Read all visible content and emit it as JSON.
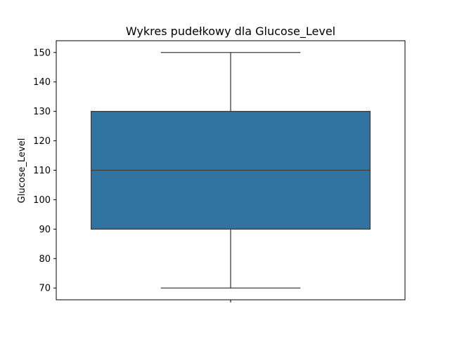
{
  "chart_data": {
    "type": "box",
    "title": "Wykres pudełkowy dla Glucose_Level",
    "xlabel": "",
    "ylabel": "Glucose_Level",
    "ylim": [
      66,
      154
    ],
    "yticks": [
      70,
      80,
      90,
      100,
      110,
      120,
      130,
      140,
      150
    ],
    "grid": false,
    "colors": {
      "box_fill": "#3274a1",
      "line": "#3f3f3f",
      "frame": "#000000"
    },
    "boxes": [
      {
        "whisker_low": 70,
        "q1": 90,
        "median": 110,
        "q3": 130,
        "whisker_high": 150
      }
    ]
  }
}
